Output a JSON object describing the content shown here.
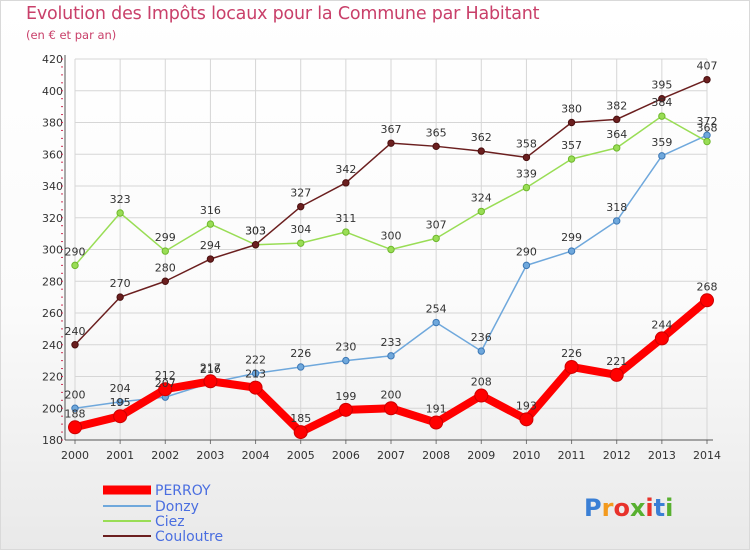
{
  "title": "Evolution des Impôts locaux pour la Commune par Habitant",
  "subtitle": "(en € et par an)",
  "brand": "Proxiti",
  "chart_data": {
    "type": "line",
    "title": "Evolution des Impôts locaux pour la Commune par Habitant",
    "subtitle": "(en € et par an)",
    "xlabel": "",
    "ylabel": "",
    "x": [
      "2000",
      "2001",
      "2002",
      "2003",
      "2004",
      "2005",
      "2006",
      "2007",
      "2008",
      "2009",
      "2010",
      "2011",
      "2012",
      "2013",
      "2014"
    ],
    "ylim": [
      180,
      420
    ],
    "yticks": [
      180,
      200,
      220,
      240,
      260,
      280,
      300,
      320,
      340,
      360,
      380,
      400,
      420
    ],
    "grid": true,
    "legend_position": "bottom-left",
    "series": [
      {
        "name": "PERROY",
        "color": "#ff0000",
        "width": 8,
        "values": [
          188,
          195,
          212,
          217,
          213,
          185,
          199,
          200,
          191,
          208,
          193,
          226,
          221,
          244,
          268
        ]
      },
      {
        "name": "Donzy",
        "color": "#6fa8dc",
        "width": 1.5,
        "values": [
          200,
          204,
          207,
          216,
          222,
          226,
          230,
          233,
          254,
          236,
          290,
          299,
          318,
          359,
          372
        ]
      },
      {
        "name": "Ciez",
        "color": "#99dd55",
        "width": 1.5,
        "values": [
          290,
          323,
          299,
          316,
          303,
          304,
          311,
          300,
          307,
          324,
          339,
          357,
          364,
          384,
          368
        ]
      },
      {
        "name": "Couloutre",
        "color": "#6b1f1f",
        "width": 1.5,
        "values": [
          240,
          270,
          280,
          294,
          303,
          327,
          342,
          367,
          365,
          362,
          358,
          380,
          382,
          395,
          407
        ]
      }
    ]
  }
}
